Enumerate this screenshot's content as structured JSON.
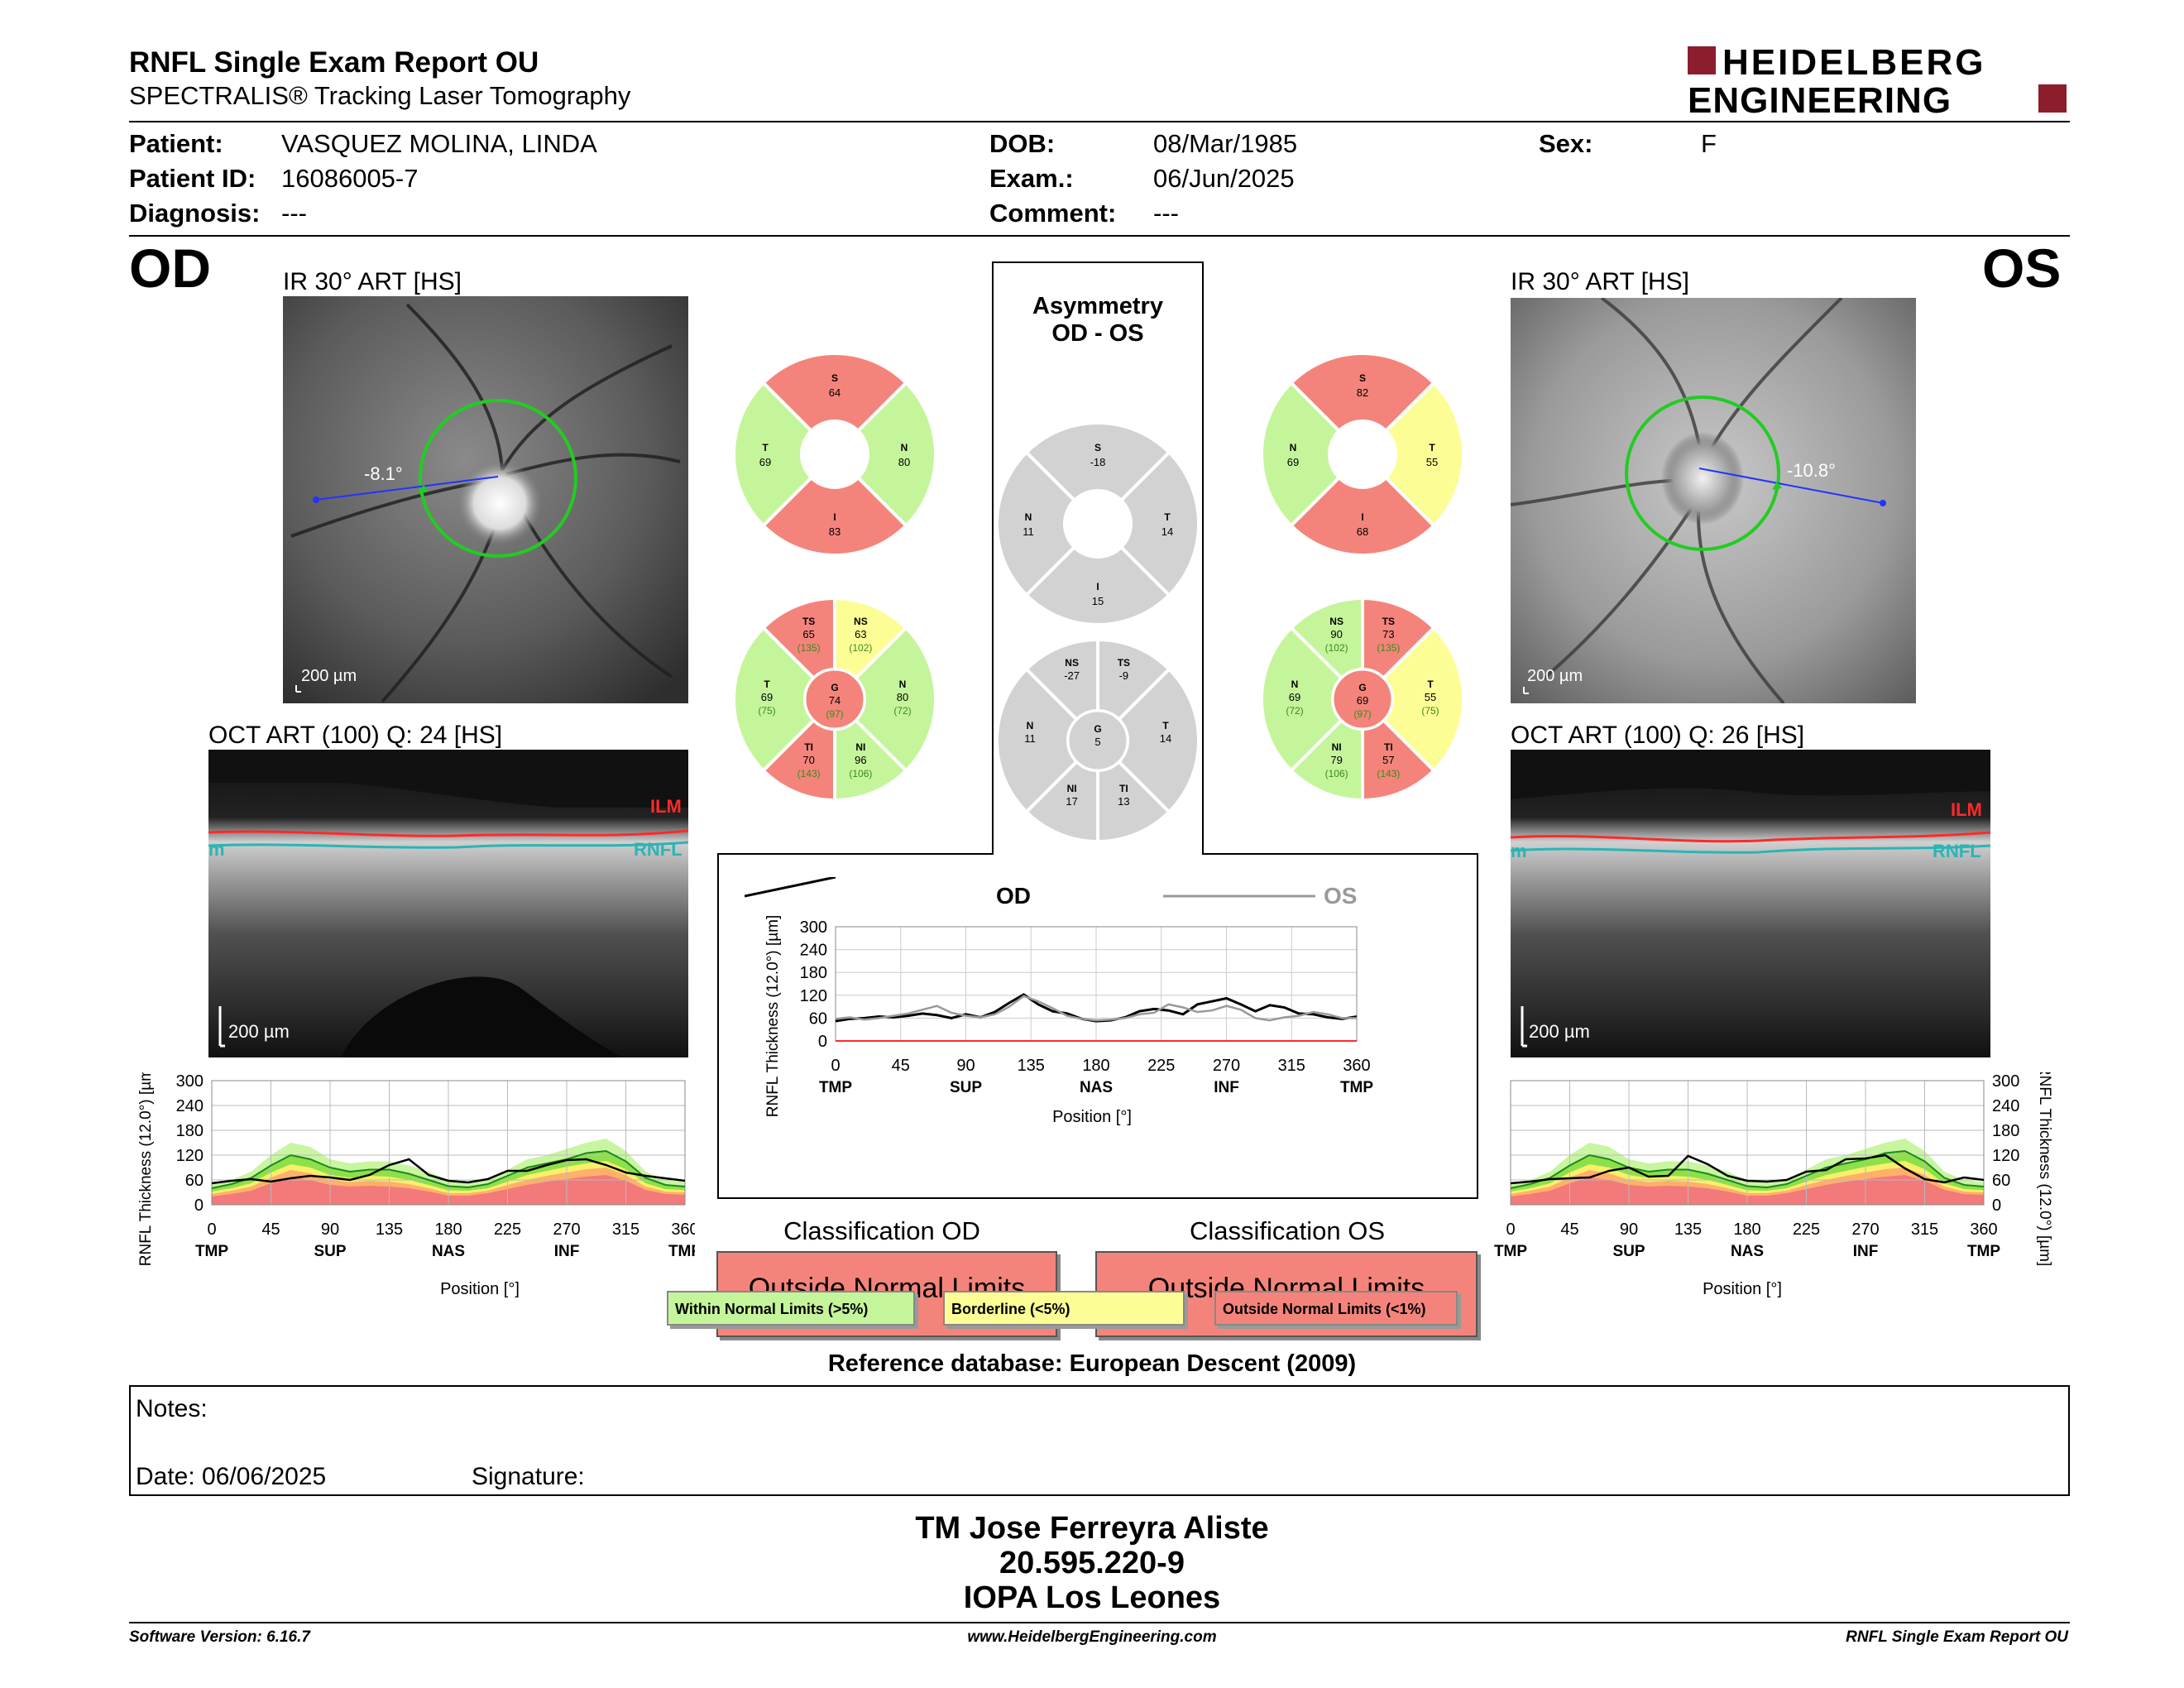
{
  "header": {
    "title": "RNFL Single Exam Report OU",
    "subtitle": "SPECTRALIS® Tracking Laser Tomography",
    "logo_line1": "HEIDELBERG",
    "logo_line2": "ENGINEERING",
    "brand_color": "#8b1d2c"
  },
  "patient": {
    "patient_label": "Patient:",
    "patient_value": "VASQUEZ MOLINA, LINDA",
    "id_label": "Patient ID:",
    "id_value": "16086005-7",
    "diagnosis_label": "Diagnosis:",
    "diagnosis_value": "---",
    "dob_label": "DOB:",
    "dob_value": "08/Mar/1985",
    "exam_label": "Exam.:",
    "exam_value": "06/Jun/2025",
    "comment_label": "Comment:",
    "comment_value": "---",
    "sex_label": "Sex:",
    "sex_value": "F"
  },
  "od": {
    "eye": "OD",
    "ir_title": "IR 30° ART [HS]",
    "angle": "-8.1°",
    "ir_scale": "200 µm",
    "oct_title": "OCT ART (100) Q: 24 [HS]",
    "oct_scale": "200 µm",
    "ilm": "ILM",
    "rnfl": "RNFL",
    "rnfl_edge": "m",
    "sectors4": {
      "S": "64",
      "T": "69",
      "N": "80",
      "I": "83"
    },
    "sectors6": {
      "TS": "65",
      "TS_ref": "(135)",
      "NS": "63",
      "NS_ref": "(102)",
      "T": "69",
      "T_ref": "(75)",
      "G": "74",
      "G_ref": "(97)",
      "N": "80",
      "N_ref": "(72)",
      "TI": "70",
      "TI_ref": "(143)",
      "NI": "96",
      "NI_ref": "(106)"
    }
  },
  "os": {
    "eye": "OS",
    "ir_title": "IR 30° ART [HS]",
    "angle": "-10.8°",
    "ir_scale": "200 µm",
    "oct_title": "OCT ART (100) Q: 26 [HS]",
    "oct_scale": "200 µm",
    "ilm": "ILM",
    "rnfl": "RNFL",
    "rnfl_edge": "m",
    "sectors4": {
      "S": "82",
      "N": "69",
      "T": "55",
      "I": "68"
    },
    "sectors6": {
      "NS": "90",
      "NS_ref": "(102)",
      "TS": "73",
      "TS_ref": "(135)",
      "N": "69",
      "N_ref": "(72)",
      "G": "69",
      "G_ref": "(97)",
      "T": "55",
      "T_ref": "(75)",
      "NI": "79",
      "NI_ref": "(106)",
      "TI": "57",
      "TI_ref": "(143)"
    }
  },
  "asymmetry": {
    "title1": "Asymmetry",
    "title2": "OD - OS",
    "sectors4": {
      "S": "-18",
      "N": "11",
      "T": "14",
      "I": "15"
    },
    "sectors6": {
      "NS": "-27",
      "TS": "-9",
      "N": "11",
      "G": "5",
      "T": "14",
      "NI": "17",
      "TI": "13"
    }
  },
  "chart_data": [
    {
      "type": "line",
      "title": "",
      "xlabel": "Position [°]",
      "ylabel": "RNFL Thickness (12.0°) [µm]",
      "xticks": [
        "0",
        "45",
        "90",
        "135",
        "180",
        "225",
        "270",
        "315",
        "360"
      ],
      "xregions": [
        "TMP",
        "SUP",
        "NAS",
        "INF",
        "TMP"
      ],
      "yticks": [
        "0",
        "60",
        "120",
        "180",
        "240",
        "300"
      ],
      "xlim": [
        0,
        360
      ],
      "ylim": [
        0,
        300
      ],
      "series": [
        {
          "name": "OD",
          "color": "#000000",
          "x": [
            0,
            10,
            20,
            30,
            40,
            50,
            60,
            70,
            80,
            90,
            100,
            110,
            120,
            130,
            140,
            150,
            160,
            170,
            180,
            190,
            200,
            210,
            220,
            230,
            240,
            250,
            260,
            270,
            280,
            290,
            300,
            310,
            320,
            330,
            340,
            350,
            360
          ],
          "y": [
            52,
            58,
            60,
            64,
            62,
            66,
            72,
            68,
            60,
            70,
            62,
            76,
            100,
            122,
            96,
            78,
            72,
            58,
            52,
            54,
            62,
            78,
            84,
            80,
            70,
            96,
            104,
            112,
            96,
            78,
            94,
            88,
            72,
            70,
            62,
            58,
            64
          ]
        },
        {
          "name": "OS",
          "color": "#999999",
          "x": [
            0,
            10,
            20,
            30,
            40,
            50,
            60,
            70,
            80,
            90,
            100,
            110,
            120,
            130,
            140,
            150,
            160,
            170,
            180,
            190,
            200,
            210,
            220,
            230,
            240,
            250,
            260,
            270,
            280,
            290,
            300,
            310,
            320,
            330,
            340,
            350,
            360
          ],
          "y": [
            58,
            62,
            56,
            60,
            66,
            72,
            82,
            92,
            74,
            66,
            62,
            70,
            90,
            118,
            104,
            86,
            66,
            58,
            54,
            56,
            60,
            70,
            74,
            96,
            88,
            76,
            80,
            92,
            82,
            60,
            54,
            62,
            66,
            76,
            70,
            60,
            60
          ]
        }
      ]
    },
    {
      "type": "area",
      "title": "",
      "xlabel": "Position [°]",
      "ylabel": "RNFL Thickness (12.0°) [µm]",
      "xticks": [
        "0",
        "45",
        "90",
        "135",
        "180",
        "225",
        "270",
        "315",
        "360"
      ],
      "xregions": [
        "TMP",
        "SUP",
        "NAS",
        "INF",
        "TMP"
      ],
      "yticks": [
        "0",
        "60",
        "120",
        "180",
        "240",
        "300"
      ],
      "xlim": [
        0,
        360
      ],
      "ylim": [
        0,
        300
      ],
      "x": [
        0,
        15,
        30,
        45,
        60,
        75,
        90,
        105,
        120,
        135,
        150,
        165,
        180,
        195,
        210,
        225,
        240,
        255,
        270,
        285,
        300,
        315,
        330,
        345,
        360
      ],
      "series": [
        {
          "name": "",
          "values": [
            52,
            60,
            80,
            120,
            150,
            140,
            110,
            100,
            105,
            105,
            95,
            80,
            60,
            55,
            62,
            85,
            110,
            120,
            135,
            150,
            160,
            130,
            80,
            60,
            55
          ]
        },
        {
          "name": "",
          "values": [
            40,
            50,
            65,
            95,
            120,
            110,
            90,
            80,
            85,
            85,
            75,
            60,
            45,
            42,
            50,
            70,
            90,
            100,
            110,
            125,
            130,
            105,
            65,
            48,
            44
          ]
        },
        {
          "name": "",
          "values": [
            32,
            40,
            52,
            78,
            98,
            90,
            72,
            65,
            70,
            68,
            60,
            48,
            35,
            34,
            40,
            56,
            72,
            82,
            92,
            100,
            106,
            86,
            52,
            38,
            35
          ]
        },
        {
          "name": "",
          "values": [
            26,
            34,
            44,
            66,
            84,
            76,
            60,
            55,
            58,
            56,
            50,
            40,
            28,
            28,
            34,
            48,
            60,
            70,
            78,
            86,
            90,
            72,
            44,
            32,
            30
          ]
        },
        {
          "name": "",
          "values": [
            20,
            26,
            34,
            52,
            66,
            60,
            48,
            44,
            46,
            44,
            40,
            32,
            22,
            22,
            28,
            38,
            48,
            56,
            62,
            68,
            72,
            58,
            36,
            26,
            24
          ]
        }
      ],
      "od_line_y": [
        52,
        58,
        62,
        56,
        64,
        70,
        66,
        60,
        72,
        96,
        110,
        72,
        58,
        54,
        62,
        82,
        82,
        96,
        108,
        110,
        96,
        78,
        70,
        64,
        58
      ],
      "os_line_y": [
        52,
        56,
        62,
        64,
        66,
        82,
        90,
        68,
        70,
        118,
        98,
        70,
        58,
        56,
        60,
        80,
        84,
        110,
        112,
        120,
        88,
        62,
        54,
        66,
        60
      ]
    }
  ],
  "center_plot": {
    "od_label": "OD",
    "os_label": "OS",
    "xlabel": "Position [°]",
    "ylabel": "RNFL Thickness (12.0°) [µm]"
  },
  "side_plots": {
    "xlabel": "Position [°]",
    "ylabel": "RNFL Thickness (12.0°) [µm]"
  },
  "classification": {
    "od_title": "Classification OD",
    "os_title": "Classification OS",
    "od_value": "Outside Normal Limits",
    "os_value": "Outside Normal Limits"
  },
  "legend": {
    "within": "Within Normal Limits (>5%)",
    "borderline": "Borderline (<5%)",
    "outside": "Outside Normal Limits (<1%)"
  },
  "colors": {
    "normal": "#c5f59a",
    "borderline": "#fdfd96",
    "outside": "#f4847b",
    "asym_gray": "#d2d2d2",
    "green_circle": "#22cc22",
    "ilm_red": "#ff2a2a",
    "rnfl_teal": "#2ab5b5"
  },
  "reference": "Reference database: European Descent (2009)",
  "notes": {
    "notes_label": "Notes:",
    "date_label": "Date: 06/06/2025",
    "signature_label": "Signature:"
  },
  "operator": {
    "name": "TM Jose Ferreyra Aliste",
    "id": "20.595.220-9",
    "center": "IOPA Los Leones"
  },
  "footer": {
    "software": "Software Version: 6.16.7",
    "website": "www.HeidelbergEngineering.com",
    "report": "RNFL Single Exam Report OU"
  }
}
